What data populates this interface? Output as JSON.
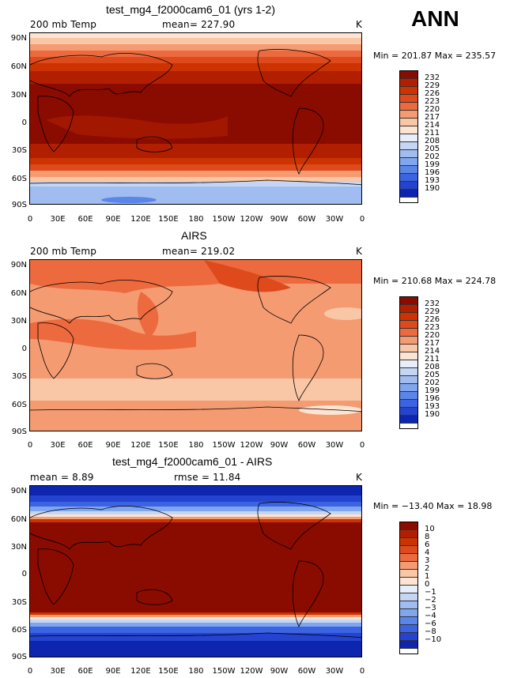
{
  "season": "ANN",
  "colors": {
    "warm_palette": [
      "#8a0b00",
      "#b21f00",
      "#cc3300",
      "#de4a1c",
      "#ec6a3e",
      "#f59b72",
      "#f9c6a6",
      "#fde4d2",
      "#e8eef9",
      "#c4d6f4",
      "#a0bcf0",
      "#7fa6ee",
      "#5a86ea",
      "#3c63e2",
      "#2343d0",
      "#0e25b0",
      "#021584"
    ],
    "map_bg": "#ffffff"
  },
  "lat_labels": [
    "90N",
    "60N",
    "30N",
    "0",
    "30S",
    "60S",
    "90S"
  ],
  "lon_labels": [
    "0",
    "30E",
    "60E",
    "90E",
    "120E",
    "150E",
    "180",
    "150W",
    "120W",
    "90W",
    "60W",
    "30W",
    "0"
  ],
  "panels": [
    {
      "title": "test_mg4_f2000cam6_01 (yrs 1-2)",
      "left_label": "200 mb Temp",
      "center_label": "mean= 227.90",
      "unit": "K",
      "minmax": "Min = 201.87 Max = 235.57",
      "levels": [
        "232",
        "229",
        "226",
        "223",
        "220",
        "217",
        "214",
        "211",
        "208",
        "205",
        "202",
        "199",
        "196",
        "193",
        "190"
      ]
    },
    {
      "title": "AIRS",
      "left_label": "200 mb Temp",
      "center_label": "mean= 219.02",
      "unit": "K",
      "minmax": "Min = 210.68 Max = 224.78",
      "levels": [
        "232",
        "229",
        "226",
        "223",
        "220",
        "217",
        "214",
        "211",
        "208",
        "205",
        "202",
        "199",
        "196",
        "193",
        "190"
      ]
    },
    {
      "title": "test_mg4_f2000cam6_01 - AIRS",
      "left_label": "mean =    8.89",
      "center_label": "rmse =   11.84",
      "unit": "K",
      "minmax": "Min = −13.40 Max =   18.98",
      "levels": [
        "10",
        "8",
        "6",
        "4",
        "3",
        "2",
        "1",
        "0",
        "−1",
        "−2",
        "−3",
        "−4",
        "−6",
        "−8",
        "−10"
      ]
    }
  ]
}
